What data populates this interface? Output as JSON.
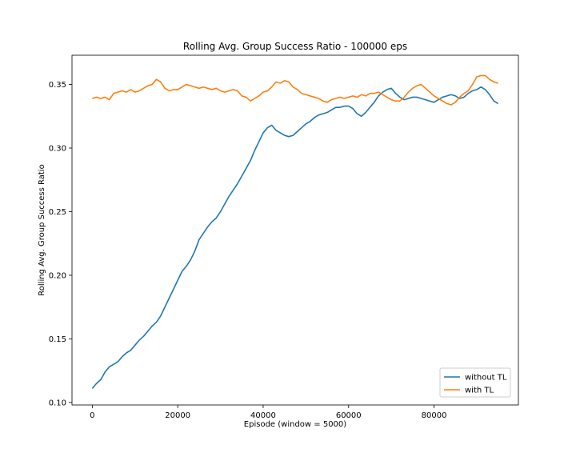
{
  "chart_data": {
    "type": "line",
    "title": "Rolling Avg. Group Success Ratio - 100000 eps",
    "xlabel": "Episode (window = 5000)",
    "ylabel": "Rolling Avg. Group Success Ratio",
    "xlim": [
      -4750,
      99750
    ],
    "ylim": [
      0.098,
      0.373
    ],
    "xticks": [
      0,
      20000,
      40000,
      60000,
      80000
    ],
    "yticks": [
      0.1,
      0.15,
      0.2,
      0.25,
      0.3,
      0.35
    ],
    "ytick_labels": [
      "0.10",
      "0.15",
      "0.20",
      "0.25",
      "0.30",
      "0.35"
    ],
    "grid": false,
    "legend_position": "lower-right",
    "series": [
      {
        "name": "without TL",
        "color": "#1f77b4",
        "x": [
          0,
          1000,
          2000,
          3000,
          4000,
          5000,
          6000,
          7000,
          8000,
          9000,
          10000,
          11000,
          12000,
          13000,
          14000,
          15000,
          16000,
          17000,
          18000,
          19000,
          20000,
          21000,
          22000,
          23000,
          24000,
          25000,
          26000,
          27000,
          28000,
          29000,
          30000,
          31000,
          32000,
          33000,
          34000,
          35000,
          36000,
          37000,
          38000,
          39000,
          40000,
          41000,
          42000,
          43000,
          44000,
          45000,
          46000,
          47000,
          48000,
          49000,
          50000,
          51000,
          52000,
          53000,
          54000,
          55000,
          56000,
          57000,
          58000,
          59000,
          60000,
          61000,
          62000,
          63000,
          64000,
          65000,
          66000,
          67000,
          68000,
          69000,
          70000,
          71000,
          72000,
          73000,
          74000,
          75000,
          76000,
          77000,
          78000,
          79000,
          80000,
          81000,
          82000,
          83000,
          84000,
          85000,
          86000,
          87000,
          88000,
          89000,
          90000,
          91000,
          92000,
          93000,
          94000,
          95000
        ],
        "values": [
          0.111,
          0.115,
          0.118,
          0.124,
          0.128,
          0.13,
          0.132,
          0.136,
          0.139,
          0.141,
          0.145,
          0.149,
          0.152,
          0.156,
          0.16,
          0.163,
          0.168,
          0.175,
          0.182,
          0.189,
          0.196,
          0.203,
          0.207,
          0.212,
          0.219,
          0.228,
          0.233,
          0.238,
          0.242,
          0.245,
          0.25,
          0.256,
          0.262,
          0.267,
          0.272,
          0.278,
          0.284,
          0.29,
          0.298,
          0.305,
          0.312,
          0.316,
          0.318,
          0.314,
          0.312,
          0.31,
          0.309,
          0.31,
          0.313,
          0.316,
          0.319,
          0.321,
          0.324,
          0.326,
          0.327,
          0.328,
          0.33,
          0.332,
          0.332,
          0.333,
          0.333,
          0.331,
          0.327,
          0.325,
          0.328,
          0.332,
          0.336,
          0.341,
          0.344,
          0.346,
          0.347,
          0.343,
          0.34,
          0.338,
          0.339,
          0.34,
          0.34,
          0.339,
          0.338,
          0.337,
          0.336,
          0.338,
          0.34,
          0.341,
          0.342,
          0.341,
          0.339,
          0.34,
          0.343,
          0.345,
          0.346,
          0.348,
          0.346,
          0.342,
          0.337,
          0.335
        ]
      },
      {
        "name": "with TL",
        "color": "#ff7f0e",
        "x": [
          0,
          1000,
          2000,
          3000,
          4000,
          5000,
          6000,
          7000,
          8000,
          9000,
          10000,
          11000,
          12000,
          13000,
          14000,
          15000,
          16000,
          17000,
          18000,
          19000,
          20000,
          21000,
          22000,
          23000,
          24000,
          25000,
          26000,
          27000,
          28000,
          29000,
          30000,
          31000,
          32000,
          33000,
          34000,
          35000,
          36000,
          37000,
          38000,
          39000,
          40000,
          41000,
          42000,
          43000,
          44000,
          45000,
          46000,
          47000,
          48000,
          49000,
          50000,
          51000,
          52000,
          53000,
          54000,
          55000,
          56000,
          57000,
          58000,
          59000,
          60000,
          61000,
          62000,
          63000,
          64000,
          65000,
          66000,
          67000,
          68000,
          69000,
          70000,
          71000,
          72000,
          73000,
          74000,
          75000,
          76000,
          77000,
          78000,
          79000,
          80000,
          81000,
          82000,
          83000,
          84000,
          85000,
          86000,
          87000,
          88000,
          89000,
          90000,
          91000,
          92000,
          93000,
          94000,
          95000
        ],
        "values": [
          0.339,
          0.34,
          0.339,
          0.34,
          0.338,
          0.343,
          0.344,
          0.345,
          0.344,
          0.346,
          0.344,
          0.345,
          0.347,
          0.349,
          0.35,
          0.354,
          0.352,
          0.347,
          0.345,
          0.346,
          0.346,
          0.348,
          0.35,
          0.349,
          0.348,
          0.347,
          0.348,
          0.347,
          0.346,
          0.347,
          0.345,
          0.344,
          0.345,
          0.346,
          0.345,
          0.341,
          0.34,
          0.337,
          0.339,
          0.341,
          0.344,
          0.345,
          0.348,
          0.352,
          0.351,
          0.353,
          0.352,
          0.348,
          0.346,
          0.343,
          0.342,
          0.341,
          0.34,
          0.339,
          0.337,
          0.336,
          0.338,
          0.339,
          0.34,
          0.339,
          0.34,
          0.341,
          0.34,
          0.342,
          0.341,
          0.343,
          0.343,
          0.344,
          0.342,
          0.34,
          0.338,
          0.337,
          0.337,
          0.34,
          0.344,
          0.347,
          0.349,
          0.35,
          0.347,
          0.344,
          0.341,
          0.339,
          0.337,
          0.335,
          0.334,
          0.336,
          0.34,
          0.343,
          0.345,
          0.35,
          0.356,
          0.357,
          0.357,
          0.354,
          0.352,
          0.351
        ]
      }
    ]
  }
}
